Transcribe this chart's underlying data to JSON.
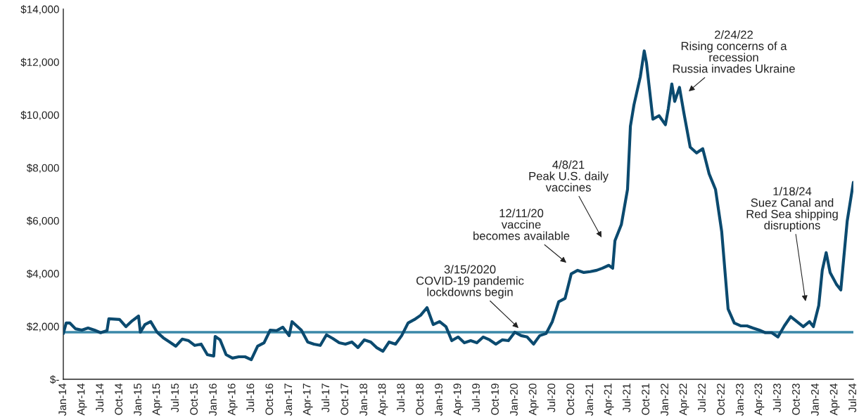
{
  "chart_data": {
    "type": "line",
    "x": [
      "2014-01-01",
      "2014-01-15",
      "2014-02-01",
      "2014-03-01",
      "2014-04-01",
      "2014-05-01",
      "2014-06-01",
      "2014-07-01",
      "2014-08-01",
      "2014-08-10",
      "2014-10-01",
      "2014-11-01",
      "2014-12-01",
      "2015-01-01",
      "2015-01-10",
      "2015-02-01",
      "2015-03-01",
      "2015-04-01",
      "2015-05-01",
      "2015-06-01",
      "2015-07-01",
      "2015-08-01",
      "2015-09-01",
      "2015-10-01",
      "2015-11-01",
      "2015-12-01",
      "2016-01-01",
      "2016-01-08",
      "2016-02-01",
      "2016-03-01",
      "2016-04-01",
      "2016-05-01",
      "2016-06-01",
      "2016-07-01",
      "2016-08-01",
      "2016-09-01",
      "2016-10-01",
      "2016-11-01",
      "2016-12-01",
      "2017-01-01",
      "2017-01-15",
      "2017-03-01",
      "2017-04-01",
      "2017-05-01",
      "2017-06-01",
      "2017-07-01",
      "2017-08-01",
      "2017-09-01",
      "2017-10-01",
      "2017-11-01",
      "2017-12-01",
      "2018-01-01",
      "2018-02-01",
      "2018-03-01",
      "2018-04-01",
      "2018-05-01",
      "2018-06-01",
      "2018-07-01",
      "2018-08-01",
      "2018-09-01",
      "2018-10-01",
      "2018-11-01",
      "2018-12-01",
      "2019-01-01",
      "2019-02-01",
      "2019-03-01",
      "2019-04-01",
      "2019-05-01",
      "2019-06-01",
      "2019-07-01",
      "2019-08-01",
      "2019-09-01",
      "2019-10-01",
      "2019-11-01",
      "2019-12-01",
      "2020-01-01",
      "2020-02-01",
      "2020-03-01",
      "2020-04-01",
      "2020-05-01",
      "2020-06-01",
      "2020-07-01",
      "2020-08-01",
      "2020-09-01",
      "2020-10-01",
      "2020-11-01",
      "2020-12-01",
      "2021-01-01",
      "2021-02-01",
      "2021-03-01",
      "2021-04-01",
      "2021-04-20",
      "2021-05-01",
      "2021-06-01",
      "2021-07-01",
      "2021-07-15",
      "2021-08-01",
      "2021-09-01",
      "2021-09-20",
      "2021-10-01",
      "2021-11-01",
      "2021-12-01",
      "2022-01-01",
      "2022-01-15",
      "2022-02-01",
      "2022-02-15",
      "2022-03-10",
      "2022-04-01",
      "2022-05-01",
      "2022-06-01",
      "2022-07-01",
      "2022-08-01",
      "2022-09-01",
      "2022-10-01",
      "2022-11-01",
      "2022-12-01",
      "2023-01-01",
      "2023-02-01",
      "2023-03-01",
      "2023-04-01",
      "2023-05-01",
      "2023-06-01",
      "2023-07-01",
      "2023-08-01",
      "2023-09-01",
      "2023-10-01",
      "2023-11-01",
      "2023-12-01",
      "2023-12-20",
      "2024-01-15",
      "2024-02-01",
      "2024-02-20",
      "2024-03-10",
      "2024-04-10",
      "2024-05-01",
      "2024-06-01",
      "2024-07-01"
    ],
    "series": [
      {
        "color": "#0b4a6f",
        "values": [
          1730,
          2130,
          2130,
          1910,
          1860,
          1940,
          1860,
          1760,
          1840,
          2290,
          2260,
          1990,
          2210,
          2390,
          1780,
          2070,
          2180,
          1780,
          1570,
          1410,
          1250,
          1520,
          1460,
          1280,
          1330,
          930,
          880,
          1620,
          1490,
          930,
          800,
          850,
          850,
          740,
          1250,
          1380,
          1860,
          1840,
          1970,
          1650,
          2180,
          1860,
          1410,
          1330,
          1280,
          1680,
          1540,
          1380,
          1330,
          1410,
          1200,
          1490,
          1410,
          1200,
          1060,
          1410,
          1330,
          1650,
          2130,
          2260,
          2420,
          2710,
          2070,
          2180,
          1990,
          1460,
          1600,
          1380,
          1460,
          1380,
          1600,
          1490,
          1330,
          1490,
          1460,
          1780,
          1650,
          1600,
          1330,
          1650,
          1730,
          2180,
          2930,
          3060,
          3990,
          4120,
          4040,
          4070,
          4120,
          4200,
          4310,
          4200,
          5240,
          5850,
          7180,
          9570,
          10370,
          11440,
          12420,
          11970,
          9840,
          9970,
          9630,
          10240,
          11170,
          10510,
          11040,
          10050,
          8780,
          8560,
          8720,
          7770,
          7180,
          5590,
          2660,
          2130,
          2020,
          2020,
          1940,
          1860,
          1760,
          1760,
          1600,
          2020,
          2370,
          2180,
          1990,
          2180,
          1990,
          2790,
          4120,
          4790,
          4040,
          3590,
          3380,
          5980,
          7450
        ]
      }
    ],
    "ylim": [
      0,
      14000
    ],
    "yticks": [
      {
        "value": 0,
        "label": "$-"
      },
      {
        "value": 2000,
        "label": "$2,000"
      },
      {
        "value": 4000,
        "label": "$4,000"
      },
      {
        "value": 6000,
        "label": "$6,000"
      },
      {
        "value": 8000,
        "label": "$8,000"
      },
      {
        "value": 10000,
        "label": "$10,000"
      },
      {
        "value": 12000,
        "label": "$12,000"
      },
      {
        "value": 14000,
        "label": "$14,000"
      }
    ],
    "xlim": [
      "2014-01",
      "2024-07"
    ],
    "xticks": [
      {
        "value": "2014-01",
        "label": "Jan-14"
      },
      {
        "value": "2014-04",
        "label": "Apr-14"
      },
      {
        "value": "2014-07",
        "label": "Jul-14"
      },
      {
        "value": "2014-10",
        "label": "Oct-14"
      },
      {
        "value": "2015-01",
        "label": "Jan-15"
      },
      {
        "value": "2015-04",
        "label": "Apr-15"
      },
      {
        "value": "2015-07",
        "label": "Jul-15"
      },
      {
        "value": "2015-10",
        "label": "Oct-15"
      },
      {
        "value": "2016-01",
        "label": "Jan-16"
      },
      {
        "value": "2016-04",
        "label": "Apr-16"
      },
      {
        "value": "2016-07",
        "label": "Jul-16"
      },
      {
        "value": "2016-10",
        "label": "Oct-16"
      },
      {
        "value": "2017-01",
        "label": "Jan-17"
      },
      {
        "value": "2017-04",
        "label": "Apr-17"
      },
      {
        "value": "2017-07",
        "label": "Jul-17"
      },
      {
        "value": "2017-10",
        "label": "Oct-17"
      },
      {
        "value": "2018-01",
        "label": "Jan-18"
      },
      {
        "value": "2018-04",
        "label": "Apr-18"
      },
      {
        "value": "2018-07",
        "label": "Jul-18"
      },
      {
        "value": "2018-10",
        "label": "Oct-18"
      },
      {
        "value": "2019-01",
        "label": "Jan-19"
      },
      {
        "value": "2019-04",
        "label": "Apr-19"
      },
      {
        "value": "2019-07",
        "label": "Jul-19"
      },
      {
        "value": "2019-10",
        "label": "Oct-19"
      },
      {
        "value": "2020-01",
        "label": "Jan-20"
      },
      {
        "value": "2020-04",
        "label": "Apr-20"
      },
      {
        "value": "2020-07",
        "label": "Jul-20"
      },
      {
        "value": "2020-10",
        "label": "Oct-20"
      },
      {
        "value": "2021-01",
        "label": "Jan-21"
      },
      {
        "value": "2021-04",
        "label": "Apr-21"
      },
      {
        "value": "2021-07",
        "label": "Jul-21"
      },
      {
        "value": "2021-10",
        "label": "Oct-21"
      },
      {
        "value": "2022-01",
        "label": "Jan-22"
      },
      {
        "value": "2022-04",
        "label": "Apr-22"
      },
      {
        "value": "2022-07",
        "label": "Jul-22"
      },
      {
        "value": "2022-10",
        "label": "Oct-22"
      },
      {
        "value": "2023-01",
        "label": "Jan-23"
      },
      {
        "value": "2023-04",
        "label": "Apr-23"
      },
      {
        "value": "2023-07",
        "label": "Jul-23"
      },
      {
        "value": "2023-10",
        "label": "Oct-23"
      },
      {
        "value": "2024-01",
        "label": "Jan-24"
      },
      {
        "value": "2024-04",
        "label": "Apr-24"
      },
      {
        "value": "2024-07",
        "label": "Jul-24"
      }
    ],
    "ref_lines": [
      {
        "axis": "y",
        "value": 1780,
        "color": "#3a88a8"
      }
    ],
    "annotations": [
      "3/15/2020\nCOVID-19 pandemic\nlockdowns begin",
      "12/11/20\nvaccine\nbecomes available",
      "4/8/21\nPeak U.S. daily\nvaccines",
      "2/24/22\nRising concerns of a\nrecession\nRussia invades Ukraine",
      "1/18/24\nSuez Canal and\nRed Sea shipping\ndisruptions"
    ],
    "grid": false,
    "line_style": "solid"
  }
}
